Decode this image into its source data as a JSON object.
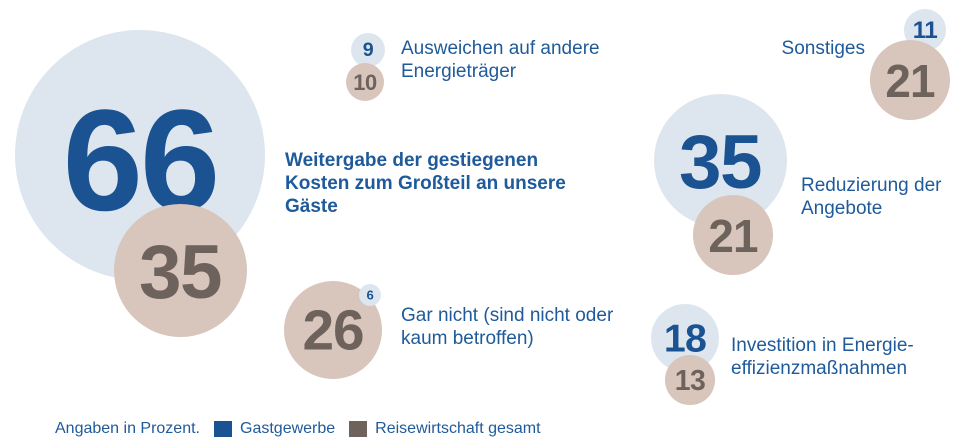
{
  "chart_data": {
    "type": "bubble",
    "categories": [
      "Weitergabe der gestiegenen Kosten zum Großteil an unsere Gäste",
      "Ausweichen auf andere Energieträger",
      "Gar nicht (sind nicht oder kaum betroffen)",
      "Sonstiges",
      "Reduzierung der Angebote",
      "Investition in Energie­effizienzmaßnahmen"
    ],
    "series": [
      {
        "name": "Gastgewerbe",
        "color": "#1b5291",
        "values": [
          66,
          9,
          6,
          11,
          35,
          18
        ]
      },
      {
        "name": "Reisewirtschaft gesamt",
        "color": "#6e625c",
        "values": [
          35,
          10,
          26,
          21,
          21,
          13
        ]
      }
    ],
    "note": "Angaben in Prozent."
  }
}
